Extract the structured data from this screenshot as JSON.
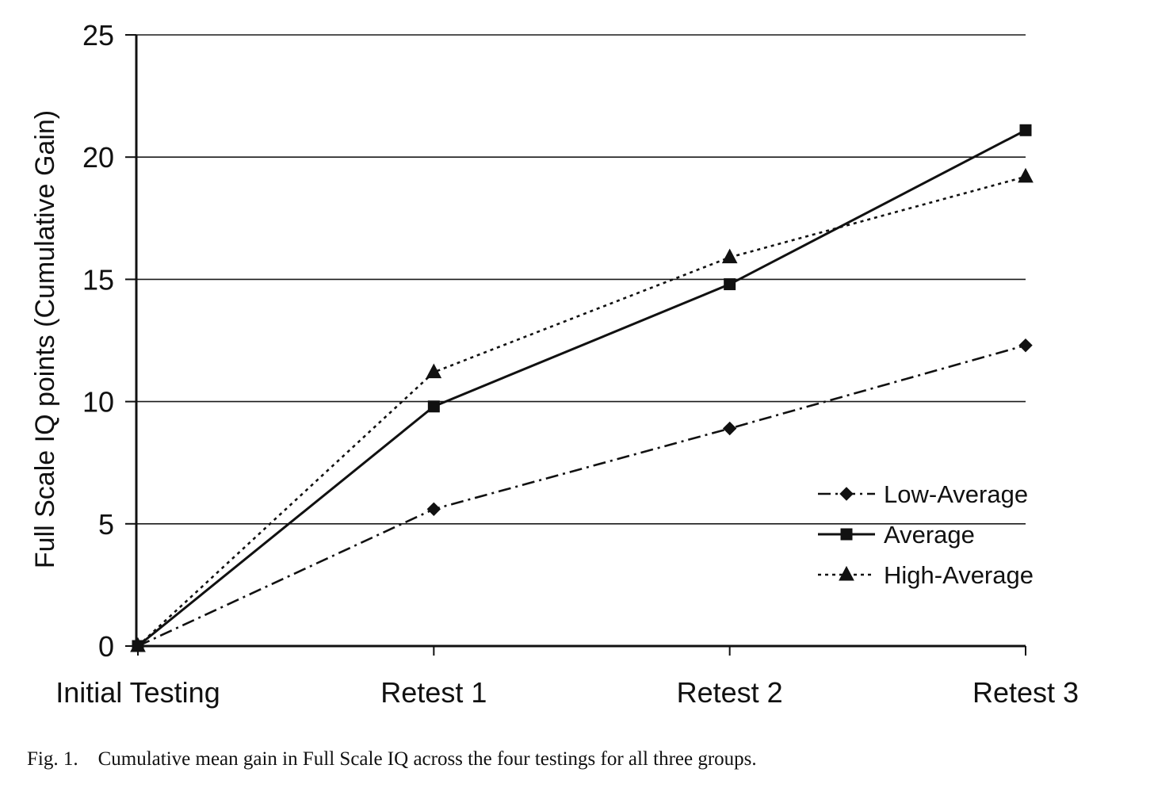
{
  "caption": "Fig. 1.    Cumulative mean gain in Full Scale IQ across the four testings for all three groups.",
  "chart_data": {
    "type": "line",
    "title": "",
    "xlabel": "",
    "ylabel": "Full Scale IQ points (Cumulative Gain)",
    "categories": [
      "Initial Testing",
      "Retest 1",
      "Retest 2",
      "Retest 3"
    ],
    "ylim": [
      0,
      25
    ],
    "yticks": [
      0,
      5,
      10,
      15,
      20,
      25
    ],
    "grid": "horizontal",
    "legend_position": "right",
    "series": [
      {
        "name": "Low-Average",
        "values": [
          0,
          5.6,
          8.9,
          12.3
        ],
        "marker": "diamond",
        "line_style": "dash-dot",
        "color": "#111111"
      },
      {
        "name": "Average",
        "values": [
          0,
          9.8,
          14.8,
          21.1
        ],
        "marker": "square",
        "line_style": "solid",
        "color": "#111111"
      },
      {
        "name": "High-Average",
        "values": [
          0,
          11.2,
          15.9,
          19.2
        ],
        "marker": "triangle",
        "line_style": "dotted",
        "color": "#111111"
      }
    ]
  }
}
